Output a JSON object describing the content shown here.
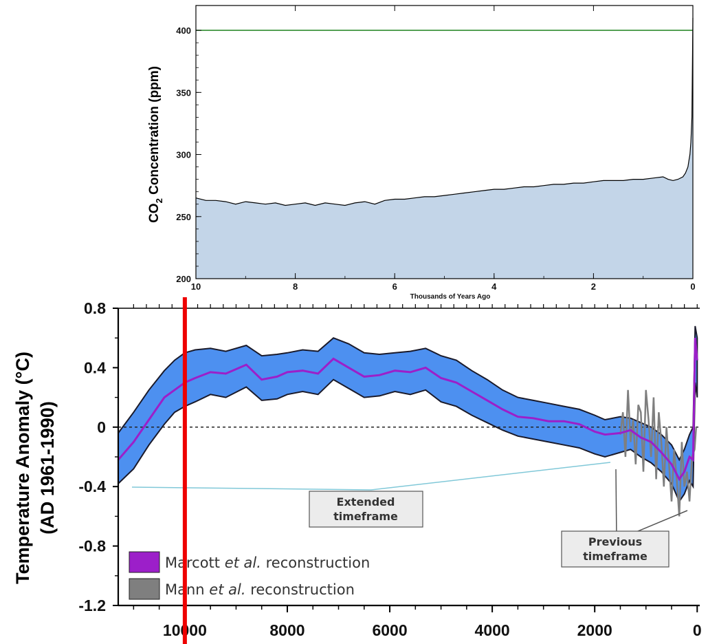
{
  "colors": {
    "co2_fill": "#c3d5e8",
    "co2_line": "#000000",
    "ref_line": "#2e8b2e",
    "band_fill": "#4d90f0",
    "marcott": "#9c1fc9",
    "mann": "#7f7f7f",
    "marker": "#ee0000",
    "guide": "#80c8d8"
  },
  "chart_data": [
    {
      "type": "area",
      "ylabel_main": "CO",
      "ylabel_sub": "2",
      "ylabel_rest": " Concentration (ppm)",
      "xlabel": "Thousands of Years Ago",
      "xlim": [
        10,
        0
      ],
      "ylim": [
        200,
        420
      ],
      "xticks": [
        "10",
        "8",
        "6",
        "4",
        "2",
        "0"
      ],
      "yticks": [
        "200",
        "250",
        "300",
        "350",
        "400"
      ],
      "reference_line": 400,
      "series": [
        {
          "x": [
            10,
            9.8,
            9.6,
            9.4,
            9.2,
            9.0,
            8.8,
            8.6,
            8.4,
            8.2,
            8.0,
            7.8,
            7.6,
            7.4,
            7.2,
            7.0,
            6.8,
            6.6,
            6.4,
            6.2,
            6.0,
            5.8,
            5.6,
            5.4,
            5.2,
            5.0,
            4.8,
            4.6,
            4.4,
            4.2,
            4.0,
            3.8,
            3.6,
            3.4,
            3.2,
            3.0,
            2.8,
            2.6,
            2.4,
            2.2,
            2.0,
            1.8,
            1.6,
            1.4,
            1.2,
            1.0,
            0.8,
            0.6,
            0.5,
            0.4,
            0.3,
            0.2,
            0.15,
            0.1,
            0.08,
            0.06,
            0.04,
            0.02,
            0.01,
            0.0
          ],
          "y": [
            265,
            263,
            263,
            262,
            260,
            262,
            261,
            260,
            261,
            259,
            260,
            261,
            259,
            261,
            260,
            259,
            261,
            262,
            260,
            263,
            264,
            264,
            265,
            266,
            266,
            267,
            268,
            269,
            270,
            271,
            272,
            272,
            273,
            274,
            274,
            275,
            276,
            276,
            277,
            277,
            278,
            279,
            279,
            279,
            280,
            280,
            281,
            282,
            280,
            279,
            280,
            282,
            285,
            290,
            295,
            300,
            310,
            330,
            370,
            410
          ]
        }
      ]
    },
    {
      "type": "line",
      "ylabel": "Temperature Anomaly (°C)",
      "ylabel2": "(AD 1961-1990)",
      "xlim": [
        11300,
        -50
      ],
      "ylim": [
        -1.2,
        0.8
      ],
      "xticks": [
        "10000",
        "8000",
        "6000",
        "4000",
        "2000",
        "0"
      ],
      "yticks": [
        "0.8",
        "0.4",
        "0",
        "-0.4",
        "-0.8",
        "-1.2"
      ],
      "marker_year": 10000,
      "callouts": [
        {
          "line1": "Extended",
          "line2": "timeframe"
        },
        {
          "line1": "Previous",
          "line2": "timeframe"
        }
      ],
      "legend": [
        {
          "label_main": "Marcott ",
          "label_em": "et al.",
          "label_rest": " reconstruction"
        },
        {
          "label_main": "Mann ",
          "label_em": "et al.",
          "label_rest": " reconstruction"
        }
      ],
      "series": [
        {
          "x": [
            11300,
            11000,
            10700,
            10400,
            10200,
            10000,
            9800,
            9500,
            9200,
            8800,
            8500,
            8200,
            8000,
            7700,
            7400,
            7100,
            6800,
            6500,
            6200,
            5900,
            5600,
            5300,
            5000,
            4700,
            4400,
            4100,
            3800,
            3500,
            3200,
            2900,
            2600,
            2300,
            2000,
            1800,
            1500,
            1300,
            1100,
            900,
            700,
            500,
            350,
            250,
            150,
            80,
            40,
            0
          ],
          "y": [
            -0.22,
            -0.1,
            0.05,
            0.2,
            0.25,
            0.3,
            0.33,
            0.37,
            0.36,
            0.42,
            0.32,
            0.34,
            0.37,
            0.38,
            0.36,
            0.46,
            0.4,
            0.34,
            0.35,
            0.38,
            0.37,
            0.4,
            0.33,
            0.3,
            0.24,
            0.18,
            0.12,
            0.07,
            0.06,
            0.04,
            0.04,
            0.02,
            -0.03,
            -0.05,
            -0.04,
            -0.02,
            -0.07,
            -0.1,
            -0.17,
            -0.25,
            -0.35,
            -0.3,
            -0.2,
            -0.22,
            0.6,
            0.45
          ],
          "upper": [
            -0.04,
            0.1,
            0.25,
            0.38,
            0.45,
            0.5,
            0.52,
            0.53,
            0.51,
            0.55,
            0.48,
            0.49,
            0.5,
            0.52,
            0.51,
            0.6,
            0.56,
            0.5,
            0.49,
            0.5,
            0.51,
            0.53,
            0.48,
            0.45,
            0.38,
            0.32,
            0.25,
            0.2,
            0.18,
            0.16,
            0.14,
            0.12,
            0.08,
            0.05,
            0.07,
            0.06,
            0.03,
            0.0,
            -0.05,
            -0.12,
            -0.22,
            -0.15,
            -0.05,
            0.0,
            0.68,
            0.6
          ],
          "lower": [
            -0.38,
            -0.28,
            -0.12,
            0.02,
            0.1,
            0.14,
            0.17,
            0.22,
            0.2,
            0.27,
            0.18,
            0.19,
            0.22,
            0.24,
            0.22,
            0.32,
            0.26,
            0.2,
            0.21,
            0.24,
            0.22,
            0.25,
            0.17,
            0.14,
            0.08,
            0.03,
            -0.02,
            -0.06,
            -0.08,
            -0.1,
            -0.12,
            -0.14,
            -0.18,
            -0.2,
            -0.17,
            -0.15,
            -0.2,
            -0.24,
            -0.3,
            -0.38,
            -0.5,
            -0.45,
            -0.36,
            -0.4,
            0.3,
            0.2
          ]
        },
        {
          "x": [
            1500,
            1450,
            1400,
            1350,
            1300,
            1250,
            1200,
            1150,
            1100,
            1050,
            1000,
            950,
            900,
            850,
            800,
            750,
            700,
            650,
            600,
            550,
            500,
            450,
            400,
            350,
            300,
            250,
            200,
            150,
            100,
            50,
            20
          ],
          "y": [
            -0.05,
            0.1,
            -0.2,
            0.25,
            -0.1,
            0.05,
            -0.25,
            0.15,
            0.1,
            -0.3,
            0.25,
            0.05,
            -0.2,
            0.2,
            -0.35,
            0.1,
            -0.1,
            -0.4,
            0.0,
            -0.25,
            -0.5,
            -0.15,
            -0.35,
            -0.6,
            -0.1,
            -0.4,
            -0.3,
            -0.5,
            -0.2,
            -0.15,
            0.0
          ]
        }
      ]
    }
  ]
}
